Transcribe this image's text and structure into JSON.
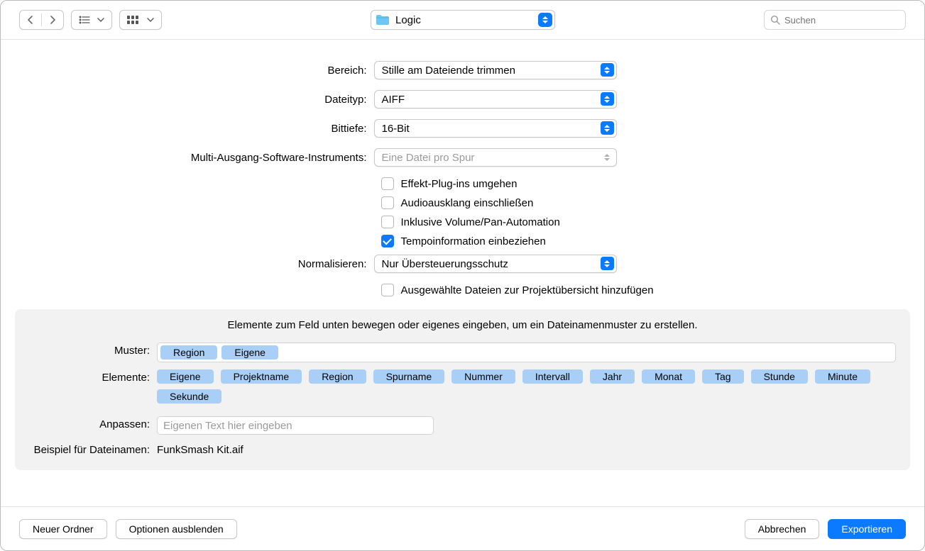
{
  "colors": {
    "accent": "#0a7aff",
    "tag": "#a9cff7",
    "panel": "#f3f2f2",
    "border": "#c8c8c8"
  },
  "toolbar": {
    "folder_name": "Logic",
    "search_placeholder": "Suchen"
  },
  "form": {
    "bereich": {
      "label": "Bereich:",
      "value": "Stille am Dateiende trimmen"
    },
    "dateityp": {
      "label": "Dateityp:",
      "value": "AIFF"
    },
    "bittiefe": {
      "label": "Bittiefe:",
      "value": "16-Bit"
    },
    "multi": {
      "label": "Multi-Ausgang-Software-Instruments:",
      "value": "Eine Datei pro Spur",
      "disabled": true
    },
    "cb_effect": {
      "label": "Effekt-Plug-ins umgehen",
      "checked": false
    },
    "cb_klang": {
      "label": "Audioausklang einschließen",
      "checked": false
    },
    "cb_volpan": {
      "label": "Inklusive Volume/Pan-Automation",
      "checked": false
    },
    "cb_tempo": {
      "label": "Tempoinformation einbeziehen",
      "checked": true
    },
    "normal": {
      "label": "Normalisieren:",
      "value": "Nur Übersteuerungsschutz"
    },
    "cb_add": {
      "label": "Ausgewählte Dateien zur Projektübersicht hinzufügen",
      "checked": false
    }
  },
  "pattern": {
    "hint": "Elemente zum Feld unten bewegen oder eigenes eingeben, um ein Dateinamenmuster zu erstellen.",
    "muster_label": "Muster:",
    "muster_tags": [
      "Region",
      "Eigene"
    ],
    "elemente_label": "Elemente:",
    "elemente_tags": [
      "Eigene",
      "Projektname",
      "Region",
      "Spurname",
      "Nummer",
      "Intervall",
      "Jahr",
      "Monat",
      "Tag",
      "Stunde",
      "Minute",
      "Sekunde"
    ],
    "anpassen_label": "Anpassen:",
    "anpassen_placeholder": "Eigenen Text hier eingeben",
    "example_label": "Beispiel für Dateinamen:",
    "example_value": "FunkSmash Kit.aif"
  },
  "footer": {
    "new_folder": "Neuer Ordner",
    "hide_options": "Optionen ausblenden",
    "cancel": "Abbrechen",
    "export": "Exportieren"
  }
}
